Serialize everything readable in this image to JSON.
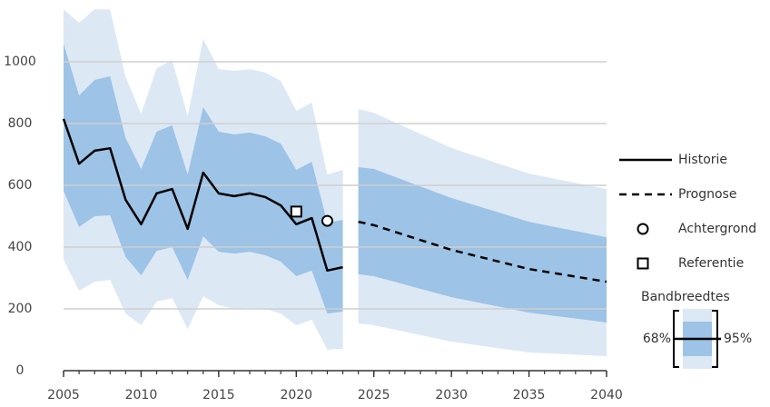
{
  "chart_data": {
    "type": "line",
    "xlim": [
      2005,
      2040
    ],
    "ylim": [
      0,
      1200
    ],
    "xticks": [
      2005,
      2010,
      2015,
      2020,
      2025,
      2030,
      2035,
      2040
    ],
    "minor_xticks": [
      2005,
      2006,
      2007,
      2008,
      2009,
      2010,
      2011,
      2012,
      2013,
      2014,
      2015,
      2016,
      2017,
      2018,
      2019,
      2020,
      2021,
      2022,
      2023,
      2024,
      2025,
      2026,
      2027,
      2028,
      2029,
      2030,
      2031,
      2032,
      2033,
      2034,
      2035,
      2036,
      2037,
      2038,
      2039,
      2040
    ],
    "yticks": [
      0,
      200,
      400,
      600,
      800,
      1000
    ],
    "grid": true,
    "band_title": "Bandbreedtes",
    "band_labels": [
      "68%",
      "95%"
    ],
    "band_colors": [
      "#9dc3e6",
      "#dde8f5"
    ],
    "series": [
      {
        "name": "Historie",
        "color": "#000000",
        "style": "solid",
        "x": [
          2005,
          2006,
          2007,
          2008,
          2009,
          2010,
          2011,
          2012,
          2013,
          2014,
          2015,
          2016,
          2017,
          2018,
          2019,
          2020,
          2021,
          2022,
          2023
        ],
        "values": [
          815,
          670,
          712,
          720,
          553,
          474,
          574,
          588,
          459,
          641,
          574,
          565,
          574,
          562,
          535,
          474,
          494,
          324,
          335
        ],
        "bands": [
          {
            "lower": [
              582,
              465,
              500,
              503,
              368,
              309,
              388,
              400,
              294,
              435,
              385,
              379,
              385,
              374,
              353,
              306,
              324,
              185,
              191
            ],
            "upper": [
              1059,
              891,
              941,
              953,
              753,
              653,
              774,
              794,
              635,
              853,
              774,
              765,
              771,
              759,
              735,
              650,
              676,
              479,
              488
            ]
          },
          {
            "lower": [
              359,
              259,
              288,
              294,
              185,
              147,
              224,
              235,
              135,
              241,
              212,
              200,
              203,
              200,
              185,
              147,
              165,
              68,
              71
            ],
            "upper": [
              1170,
              1126,
              1170,
              1170,
              950,
              832,
              979,
              1006,
              824,
              1074,
              976,
              971,
              976,
              965,
              938,
              841,
              868,
              635,
              650
            ]
          }
        ]
      },
      {
        "name": "Prognose",
        "color": "#000000",
        "style": "dashed",
        "x": [
          2024,
          2025,
          2030,
          2035,
          2040
        ],
        "values": [
          482,
          471,
          391,
          329,
          288
        ],
        "bands": [
          {
            "lower": [
              312,
              306,
              238,
              188,
              156
            ],
            "upper": [
              659,
              653,
              559,
              482,
              432
            ]
          },
          {
            "lower": [
              153,
              147,
              94,
              59,
              47
            ],
            "upper": [
              847,
              835,
              721,
              638,
              588
            ]
          }
        ]
      },
      {
        "name": "Achtergrond",
        "color": "#000000",
        "marker": "circle",
        "x": [
          2022
        ],
        "values": [
          485
        ]
      },
      {
        "name": "Referentie",
        "color": "#000000",
        "marker": "square",
        "x": [
          2020
        ],
        "values": [
          515
        ]
      }
    ]
  }
}
